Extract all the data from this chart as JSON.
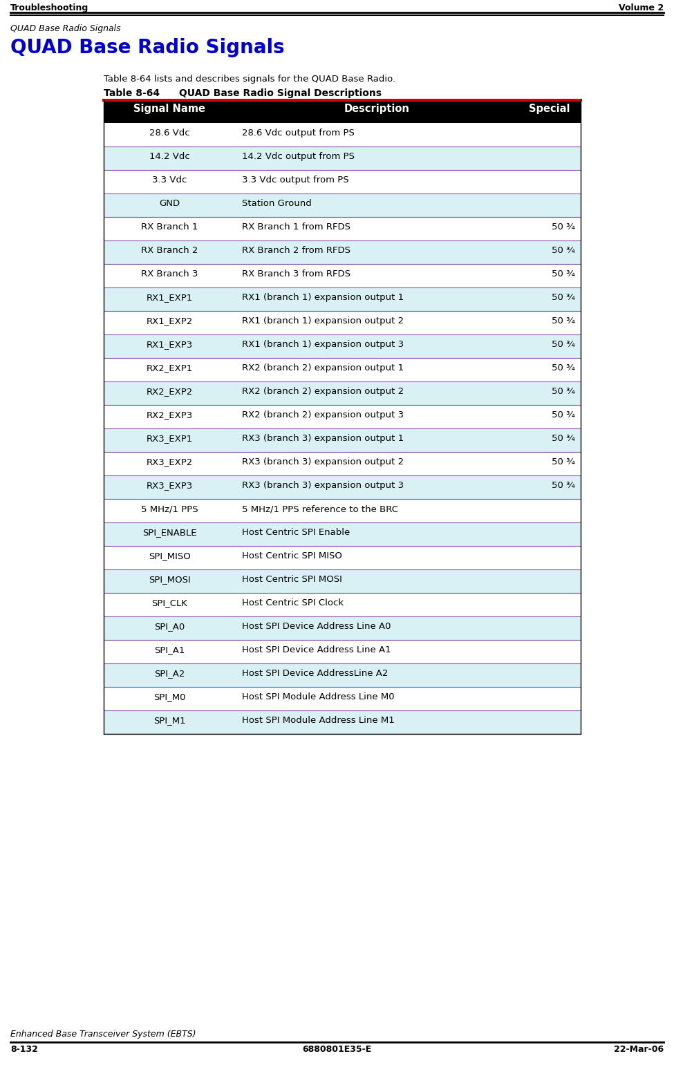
{
  "page_title_left": "Troubleshooting",
  "page_title_right": "Volume 2",
  "section_label": "QUAD Base Radio Signals",
  "heading": "QUAD Base Radio Signals",
  "intro_text": "Table 8-64 lists and describes signals for the QUAD Base Radio.",
  "table_title": "Table 8-64  QUAD Base Radio Signal Descriptions",
  "col_headers": [
    "Signal Name",
    "Description",
    "Special"
  ],
  "rows": [
    {
      "name": "28.6 Vdc",
      "desc": "28.6 Vdc output from PS",
      "special": "",
      "shaded": false
    },
    {
      "name": "14.2 Vdc",
      "desc": "14.2 Vdc output from PS",
      "special": "",
      "shaded": true
    },
    {
      "name": "3.3 Vdc",
      "desc": "3.3 Vdc output from PS",
      "special": "",
      "shaded": false
    },
    {
      "name": "GND",
      "desc": "Station Ground",
      "special": "",
      "shaded": true
    },
    {
      "name": "RX Branch 1",
      "desc": "RX Branch 1 from RFDS",
      "special": "50 ¾",
      "shaded": false
    },
    {
      "name": "RX Branch 2",
      "desc": "RX Branch 2 from RFDS",
      "special": "50 ¾",
      "shaded": true
    },
    {
      "name": "RX Branch 3",
      "desc": "RX Branch 3 from RFDS",
      "special": "50 ¾",
      "shaded": false
    },
    {
      "name": "RX1_EXP1",
      "desc": "RX1 (branch 1) expansion output 1",
      "special": "50 ¾",
      "shaded": true
    },
    {
      "name": "RX1_EXP2",
      "desc": "RX1 (branch 1) expansion output 2",
      "special": "50 ¾",
      "shaded": false
    },
    {
      "name": "RX1_EXP3",
      "desc": "RX1 (branch 1) expansion output 3",
      "special": "50 ¾",
      "shaded": true
    },
    {
      "name": "RX2_EXP1",
      "desc": "RX2 (branch 2) expansion output 1",
      "special": "50 ¾",
      "shaded": false
    },
    {
      "name": "RX2_EXP2",
      "desc": "RX2 (branch 2) expansion output 2",
      "special": "50 ¾",
      "shaded": true
    },
    {
      "name": "RX2_EXP3",
      "desc": "RX2 (branch 2) expansion output 3",
      "special": "50 ¾",
      "shaded": false
    },
    {
      "name": "RX3_EXP1",
      "desc": "RX3 (branch 3) expansion output 1",
      "special": "50 ¾",
      "shaded": true
    },
    {
      "name": "RX3_EXP2",
      "desc": "RX3 (branch 3) expansion output 2",
      "special": "50 ¾",
      "shaded": false
    },
    {
      "name": "RX3_EXP3",
      "desc": "RX3 (branch 3) expansion output 3",
      "special": "50 ¾",
      "shaded": true
    },
    {
      "name": "5 MHz/1 PPS",
      "desc": "5 MHz/1 PPS reference to the BRC",
      "special": "",
      "shaded": false
    },
    {
      "name": "SPI_ENABLE",
      "desc": "Host Centric SPI Enable",
      "special": "",
      "shaded": true
    },
    {
      "name": "SPI_MISO",
      "desc": "Host Centric SPI MISO",
      "special": "",
      "shaded": false
    },
    {
      "name": "SPI_MOSI",
      "desc": "Host Centric SPI MOSI",
      "special": "",
      "shaded": true
    },
    {
      "name": "SPI_CLK",
      "desc": "Host Centric SPI Clock",
      "special": "",
      "shaded": false
    },
    {
      "name": "SPI_A0",
      "desc": "Host SPI Device Address Line A0",
      "special": "",
      "shaded": true
    },
    {
      "name": "SPI_A1",
      "desc": "Host SPI Device Address Line A1",
      "special": "",
      "shaded": false
    },
    {
      "name": "SPI_A2",
      "desc": "Host SPI Device AddressLine A2",
      "special": "",
      "shaded": true
    },
    {
      "name": "SPI_M0",
      "desc": "Host SPI Module Address Line M0",
      "special": "",
      "shaded": false
    },
    {
      "name": "SPI_M1",
      "desc": "Host SPI Module Address Line M1",
      "special": "",
      "shaded": true
    }
  ],
  "footer_left": "Enhanced Base Transceiver System (EBTS)",
  "footer_page": "8-132",
  "footer_center": "6880801E35-E",
  "footer_right": "22-Mar-06",
  "header_color": "#000000",
  "header_text_color": "#ffffff",
  "header_red_line_color": "#cc0000",
  "shaded_row_color": "#d9f0f5",
  "unshaded_row_color": "#ffffff",
  "row_border_color": "#8855aa",
  "heading_color": "#0000cc",
  "table_title_color": "#000000",
  "page_bg": "#ffffff"
}
